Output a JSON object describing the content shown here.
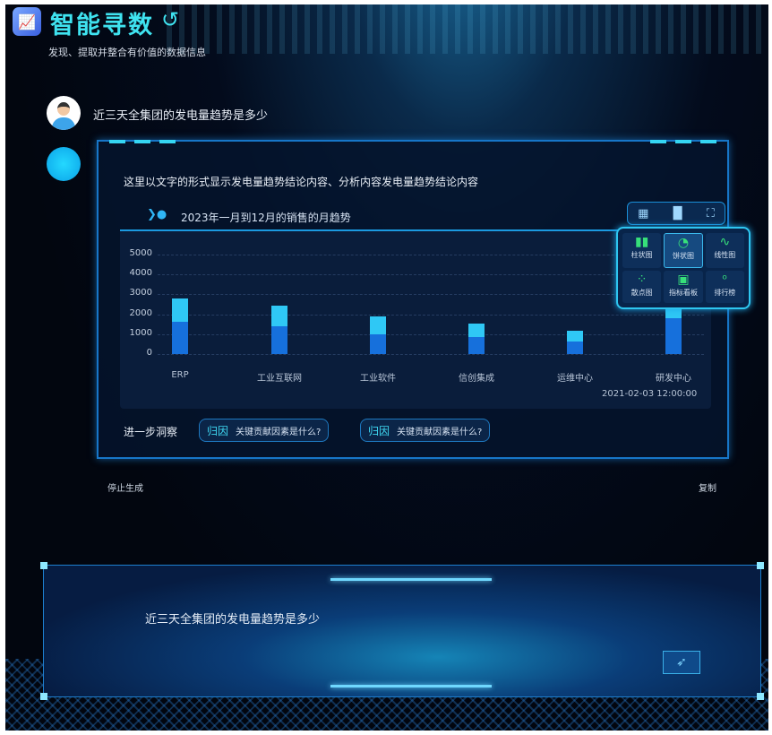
{
  "header": {
    "title": "智能寻数",
    "subtitle": "发现、提取并整合有价值的数据信息",
    "logo_icon": "chart-logo-icon",
    "back_icon": "undo-icon"
  },
  "conversation": {
    "user_question": "近三天全集团的发电量趋势是多少",
    "answer": {
      "text": "这里以文字的形式显示发电量趋势结论内容、分析内容发电量趋势结论内容",
      "insight_label": "进一步洞察",
      "chips": [
        {
          "tag": "归因",
          "text": "关键贡献因素是什么?"
        },
        {
          "tag": "归因",
          "text": "关键贡献因素是什么?"
        }
      ],
      "stop_label": "停止生成",
      "copy_label": "复制"
    }
  },
  "chart_toolbar": {
    "icons": [
      "table-icon",
      "bar-chart-icon",
      "fullscreen-icon"
    ]
  },
  "chart_picker": {
    "selected": "饼状图",
    "options": [
      {
        "label": "柱状图",
        "icon": "bar-icon",
        "glyph": "▮▮"
      },
      {
        "label": "饼状图",
        "icon": "pie-icon",
        "glyph": "◔"
      },
      {
        "label": "线性图",
        "icon": "line-icon",
        "glyph": "∿"
      },
      {
        "label": "散点图",
        "icon": "scatter-icon",
        "glyph": "⁘"
      },
      {
        "label": "指标看板",
        "icon": "dashboard-icon",
        "glyph": "▣"
      },
      {
        "label": "排行榜",
        "icon": "medal-icon",
        "glyph": "ᵒ"
      }
    ]
  },
  "chart_data": {
    "type": "bar",
    "stacked": true,
    "title": "2023年一月到12月的销售的月趋势",
    "categories": [
      "ERP",
      "工业互联网",
      "工业软件",
      "信创集成",
      "运维中心",
      "研发中心"
    ],
    "yticks": [
      "5000",
      "4000",
      "3000",
      "2000",
      "1000",
      "0"
    ],
    "ylim": [
      0,
      5000
    ],
    "grid": true,
    "series": [
      {
        "values": [
          1600,
          1400,
          1000,
          850,
          650,
          1800
        ],
        "color": "#1670dc"
      },
      {
        "values": [
          1200,
          1050,
          900,
          700,
          500,
          1400
        ],
        "color": "#2fc8f5"
      }
    ],
    "timestamp": "2021-02-03 12:00:00"
  },
  "input": {
    "value": "近三天全集团的发电量趋势是多少",
    "send_icon": "send-icon"
  }
}
